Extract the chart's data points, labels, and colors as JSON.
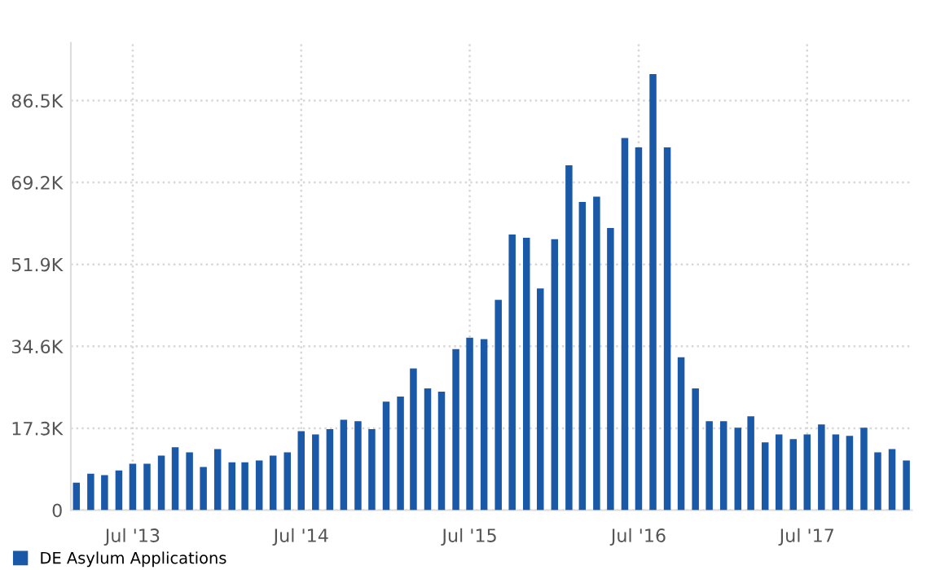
{
  "chart_data": {
    "type": "bar",
    "x": [
      "2013-03",
      "2013-04",
      "2013-05",
      "2013-06",
      "2013-07",
      "2013-08",
      "2013-09",
      "2013-10",
      "2013-11",
      "2013-12",
      "2014-01",
      "2014-02",
      "2014-03",
      "2014-04",
      "2014-05",
      "2014-06",
      "2014-07",
      "2014-08",
      "2014-09",
      "2014-10",
      "2014-11",
      "2014-12",
      "2015-01",
      "2015-02",
      "2015-03",
      "2015-04",
      "2015-05",
      "2015-06",
      "2015-07",
      "2015-08",
      "2015-09",
      "2015-10",
      "2015-11",
      "2015-12",
      "2016-01",
      "2016-02",
      "2016-03",
      "2016-04",
      "2016-05",
      "2016-06",
      "2016-07",
      "2016-08",
      "2016-09",
      "2016-10",
      "2016-11",
      "2016-12",
      "2017-01",
      "2017-02",
      "2017-03",
      "2017-04",
      "2017-05",
      "2017-06",
      "2017-07",
      "2017-08",
      "2017-09",
      "2017-10",
      "2017-11",
      "2017-12",
      "2018-01",
      "2018-02"
    ],
    "series": [
      {
        "name": "DE Asylum Applications",
        "color": "#1a58a8",
        "values": [
          5.8,
          7.7,
          7.4,
          8.4,
          9.8,
          9.8,
          11.5,
          13.3,
          12.2,
          9.1,
          12.9,
          10.1,
          10.1,
          10.5,
          11.5,
          12.2,
          16.7,
          16.0,
          17.1,
          19.1,
          18.8,
          17.1,
          22.9,
          24.0,
          29.9,
          25.7,
          25.0,
          34.0,
          36.4,
          36.1,
          44.4,
          58.2,
          57.5,
          46.8,
          57.2,
          72.8,
          65.1,
          66.2,
          59.6,
          78.6,
          76.6,
          92.1,
          76.6,
          32.3,
          25.7,
          18.8,
          18.8,
          17.4,
          19.8,
          14.3,
          16.0,
          15.0,
          16.0,
          18.1,
          16.0,
          15.7,
          17.4,
          12.2,
          12.9,
          10.5
        ]
      }
    ],
    "xlim": [
      "2013-02-17",
      "2018-02-13"
    ],
    "xticks": [
      {
        "value": "2013-07",
        "label": "Jul '13"
      },
      {
        "value": "2014-07",
        "label": "Jul '14"
      },
      {
        "value": "2015-07",
        "label": "Jul '15"
      },
      {
        "value": "2016-07",
        "label": "Jul '16"
      },
      {
        "value": "2017-07",
        "label": "Jul '17"
      }
    ],
    "ylim": [
      0,
      98.7
    ],
    "yticks": [
      0,
      {
        "value": 17.3,
        "label": "17.3K"
      },
      {
        "value": 34.6,
        "label": "34.6K"
      },
      {
        "value": 51.9,
        "label": "51.9K"
      },
      {
        "value": 69.2,
        "label": "69.2K"
      },
      {
        "value": 86.5,
        "label": "86.5K"
      }
    ],
    "grid": true,
    "legend": "bottom left"
  }
}
